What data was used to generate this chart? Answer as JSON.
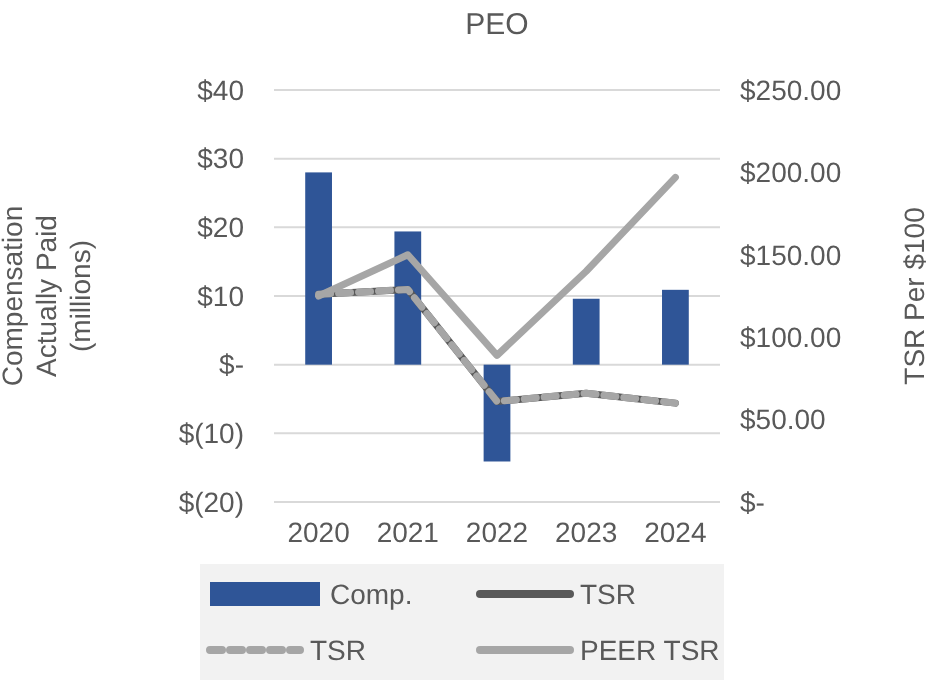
{
  "chart_data": {
    "type": "bar",
    "title": "PEO",
    "ylabel": "Compensation Actually Paid (millions)",
    "y2label": "TSR Per $100",
    "categories": [
      "2020",
      "2021",
      "2022",
      "2023",
      "2024"
    ],
    "series": [
      {
        "name": "Comp.",
        "color": "#2f5597",
        "values": [
          28.0,
          19.4,
          -14.1,
          9.6,
          10.9
        ]
      },
      {
        "name": "TSR",
        "type": "line",
        "axis": "y2",
        "color": "#595959",
        "line_style": "solid",
        "values": [
          126,
          129,
          61,
          66,
          60
        ]
      },
      {
        "name": "TSR",
        "type": "line",
        "axis": "y2",
        "color": "#a6a6a6",
        "line_style": "dashed",
        "values": [
          126,
          129,
          61,
          66,
          60
        ]
      },
      {
        "name": "PEER TSR",
        "type": "line",
        "axis": "y2",
        "color": "#a6a6a6",
        "line_style": "solid",
        "values": [
          125,
          150,
          89,
          140,
          197
        ]
      }
    ],
    "ylim": [
      -20,
      40
    ],
    "yticks": [
      {
        "value": -20,
        "label": "$(20)"
      },
      {
        "value": -10,
        "label": "$(10)"
      },
      {
        "value": 0,
        "label": "$-"
      },
      {
        "value": 10,
        "label": "$10"
      },
      {
        "value": 20,
        "label": "$20"
      },
      {
        "value": 30,
        "label": "$30"
      },
      {
        "value": 40,
        "label": "$40"
      }
    ],
    "y2lim": [
      0,
      250
    ],
    "y2ticks": [
      {
        "value": 0,
        "label": "$-"
      },
      {
        "value": 50,
        "label": "$50.00"
      },
      {
        "value": 100,
        "label": "$100.00"
      },
      {
        "value": 150,
        "label": "$150.00"
      },
      {
        "value": 200,
        "label": "$200.00"
      },
      {
        "value": 250,
        "label": "$250.00"
      }
    ],
    "grid": "y",
    "legend": "bottom"
  }
}
